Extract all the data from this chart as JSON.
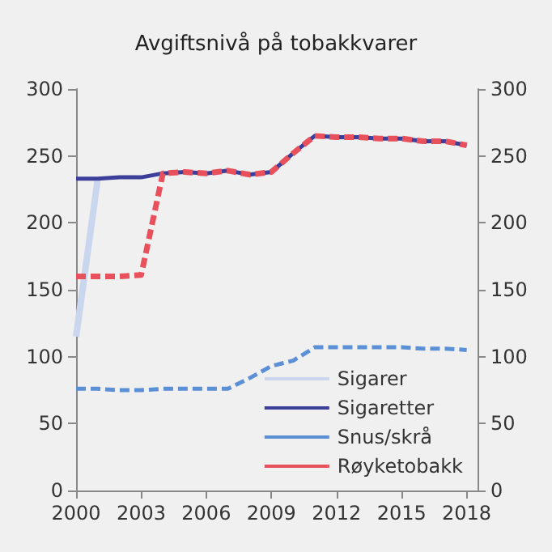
{
  "chart_data": {
    "type": "line",
    "title": "Avgiftsnivå på tobakkvarer",
    "x": [
      2000,
      2001,
      2002,
      2003,
      2004,
      2005,
      2006,
      2007,
      2008,
      2009,
      2010,
      2011,
      2012,
      2013,
      2014,
      2015,
      2016,
      2017,
      2018
    ],
    "series": [
      {
        "name": "Sigarer",
        "color": "#c9d6ee",
        "line_style": "solid",
        "values": [
          115,
          233,
          null,
          null,
          null,
          null,
          null,
          null,
          null,
          null,
          null,
          null,
          null,
          null,
          null,
          null,
          null,
          null,
          null
        ]
      },
      {
        "name": "Sigaretter",
        "color": "#3b3f9a",
        "line_style": "solid",
        "values": [
          233,
          233,
          234,
          234,
          237,
          238,
          237,
          239,
          236,
          238,
          252,
          265,
          264,
          264,
          263,
          263,
          261,
          261,
          258
        ]
      },
      {
        "name": "Snus/skrå",
        "color": "#5b8fd6",
        "line_style": "dashed",
        "values": [
          76,
          76,
          75,
          75,
          76,
          76,
          76,
          76,
          84,
          93,
          97,
          107,
          107,
          107,
          107,
          107,
          106,
          106,
          105
        ]
      },
      {
        "name": "Røyketobakk",
        "color": "#e8505b",
        "line_style": "dashed",
        "values": [
          160,
          160,
          160,
          161,
          237,
          238,
          237,
          239,
          236,
          238,
          252,
          265,
          264,
          264,
          263,
          263,
          261,
          261,
          258
        ]
      }
    ],
    "xlim": [
      2000,
      2018.5
    ],
    "xticks": [
      2000,
      2003,
      2006,
      2009,
      2012,
      2015,
      2018
    ],
    "ylim": [
      0,
      300
    ],
    "yticks": [
      0,
      50,
      100,
      150,
      200,
      250,
      300
    ],
    "y2lim": [
      0,
      300
    ],
    "y2ticks": [
      0,
      50,
      100,
      150,
      200,
      250,
      300
    ],
    "grid": false,
    "legend": "bottom right",
    "marker": "none"
  }
}
